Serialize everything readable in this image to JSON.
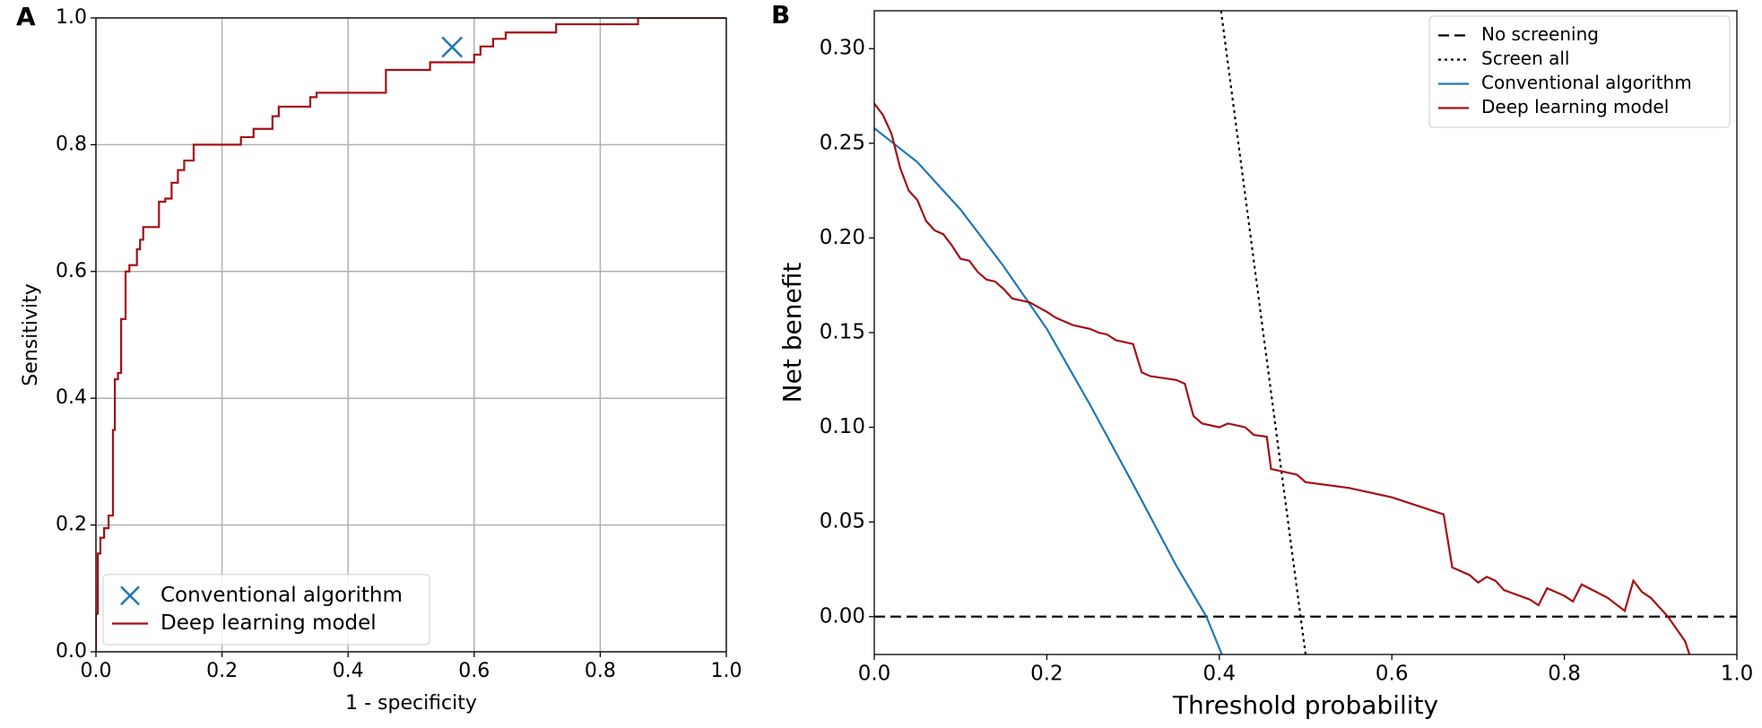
{
  "chart_data": [
    {
      "type": "line",
      "panel_label": "A",
      "xlabel": "1 - specificity",
      "ylabel": "Sensitivity",
      "xlim": [
        0,
        1
      ],
      "ylim": [
        0,
        1
      ],
      "xticks": [
        {
          "value": 0,
          "label": "0.0"
        },
        0.2,
        0.4,
        0.6,
        0.8,
        {
          "value": 1,
          "label": "1.0"
        }
      ],
      "yticks": [
        {
          "value": 0,
          "label": "0.0"
        },
        0.2,
        0.4,
        0.6,
        0.8,
        {
          "value": 1,
          "label": "1.0"
        }
      ],
      "grid": true,
      "legend": "lower left",
      "series": [
        {
          "name": "Conventional algorithm",
          "color": "#1f77b4",
          "marker": "x",
          "x": [
            0.565
          ],
          "values": [
            0.954
          ]
        },
        {
          "name": "Deep learning model",
          "color": "#a50f15",
          "linestyle": "solid",
          "x": [
            0,
            0,
            0.003,
            0.003,
            0.007,
            0.007,
            0.013,
            0.013,
            0.02,
            0.02,
            0.027,
            0.027,
            0.03,
            0.03,
            0.035,
            0.035,
            0.04,
            0.04,
            0.047,
            0.047,
            0.053,
            0.053,
            0.065,
            0.065,
            0.07,
            0.07,
            0.075,
            0.075,
            0.1,
            0.1,
            0.11,
            0.11,
            0.12,
            0.12,
            0.13,
            0.13,
            0.14,
            0.14,
            0.155,
            0.155,
            0.23,
            0.23,
            0.25,
            0.25,
            0.28,
            0.28,
            0.29,
            0.29,
            0.34,
            0.34,
            0.35,
            0.35,
            0.46,
            0.46,
            0.53,
            0.53,
            0.6,
            0.6,
            0.61,
            0.61,
            0.63,
            0.63,
            0.65,
            0.65,
            0.73,
            0.73,
            0.86,
            0.86,
            1.0
          ],
          "values": [
            0,
            0.06,
            0.06,
            0.155,
            0.155,
            0.18,
            0.18,
            0.195,
            0.195,
            0.215,
            0.215,
            0.35,
            0.35,
            0.43,
            0.43,
            0.44,
            0.44,
            0.525,
            0.525,
            0.6,
            0.6,
            0.61,
            0.61,
            0.635,
            0.635,
            0.65,
            0.65,
            0.67,
            0.67,
            0.71,
            0.71,
            0.715,
            0.715,
            0.74,
            0.74,
            0.76,
            0.76,
            0.775,
            0.775,
            0.8,
            0.8,
            0.812,
            0.812,
            0.825,
            0.825,
            0.845,
            0.845,
            0.86,
            0.86,
            0.875,
            0.875,
            0.882,
            0.882,
            0.918,
            0.918,
            0.93,
            0.93,
            0.942,
            0.942,
            0.955,
            0.955,
            0.967,
            0.967,
            0.977,
            0.977,
            0.99,
            0.99,
            1.0,
            1.0
          ]
        }
      ]
    },
    {
      "type": "line",
      "panel_label": "B",
      "xlabel": "Threshold probability",
      "ylabel": "Net benefit",
      "xlim": [
        0,
        1
      ],
      "ylim": [
        -0.02,
        0.32
      ],
      "xticks": [
        {
          "value": 0,
          "label": "0.0"
        },
        0.2,
        0.4,
        0.6,
        0.8,
        {
          "value": 1,
          "label": "1.0"
        }
      ],
      "yticks": [
        {
          "value": 0,
          "label": "0.00"
        },
        0.05,
        {
          "value": 0.1,
          "label": "0.10"
        },
        0.15,
        {
          "value": 0.2,
          "label": "0.20"
        },
        0.25,
        {
          "value": 0.3,
          "label": "0.30"
        }
      ],
      "grid": false,
      "legend": "upper right",
      "series": [
        {
          "name": "No screening",
          "color": "#000000",
          "linestyle": "dashed",
          "x": [
            0,
            1
          ],
          "values": [
            0,
            0
          ]
        },
        {
          "name": "Screen all",
          "color": "#000000",
          "linestyle": "dotted",
          "x": [
            0.402,
            0.45,
            0.48,
            0.5
          ],
          "values": [
            0.32,
            0.153,
            0.049,
            -0.02
          ]
        },
        {
          "name": "Conventional algorithm",
          "color": "#1f77b4",
          "linestyle": "solid",
          "x": [
            0,
            0.05,
            0.1,
            0.15,
            0.2,
            0.25,
            0.3,
            0.35,
            0.385,
            0.403
          ],
          "values": [
            0.258,
            0.24,
            0.215,
            0.185,
            0.152,
            0.112,
            0.07,
            0.027,
            0,
            -0.02
          ]
        },
        {
          "name": "Deep learning model",
          "color": "#a50f15",
          "linestyle": "solid",
          "x": [
            0,
            0.01,
            0.02,
            0.03,
            0.04,
            0.05,
            0.06,
            0.07,
            0.08,
            0.09,
            0.1,
            0.11,
            0.12,
            0.13,
            0.14,
            0.15,
            0.16,
            0.18,
            0.2,
            0.21,
            0.22,
            0.23,
            0.25,
            0.26,
            0.27,
            0.28,
            0.3,
            0.31,
            0.32,
            0.35,
            0.36,
            0.37,
            0.38,
            0.4,
            0.41,
            0.43,
            0.44,
            0.455,
            0.46,
            0.48,
            0.49,
            0.5,
            0.55,
            0.6,
            0.66,
            0.67,
            0.69,
            0.7,
            0.71,
            0.72,
            0.73,
            0.76,
            0.77,
            0.78,
            0.8,
            0.81,
            0.82,
            0.85,
            0.87,
            0.88,
            0.89,
            0.9,
            0.92,
            0.94,
            0.945
          ],
          "values": [
            0.271,
            0.265,
            0.255,
            0.237,
            0.225,
            0.22,
            0.209,
            0.204,
            0.202,
            0.196,
            0.189,
            0.188,
            0.182,
            0.178,
            0.177,
            0.173,
            0.168,
            0.166,
            0.161,
            0.158,
            0.156,
            0.154,
            0.152,
            0.15,
            0.149,
            0.146,
            0.144,
            0.129,
            0.127,
            0.125,
            0.123,
            0.106,
            0.102,
            0.1,
            0.102,
            0.1,
            0.096,
            0.095,
            0.078,
            0.076,
            0.075,
            0.071,
            0.068,
            0.063,
            0.054,
            0.026,
            0.022,
            0.018,
            0.021,
            0.019,
            0.014,
            0.009,
            0.006,
            0.015,
            0.011,
            0.008,
            0.017,
            0.01,
            0.003,
            0.019,
            0.013,
            0.01,
            0,
            -0.013,
            -0.02
          ]
        }
      ]
    }
  ]
}
